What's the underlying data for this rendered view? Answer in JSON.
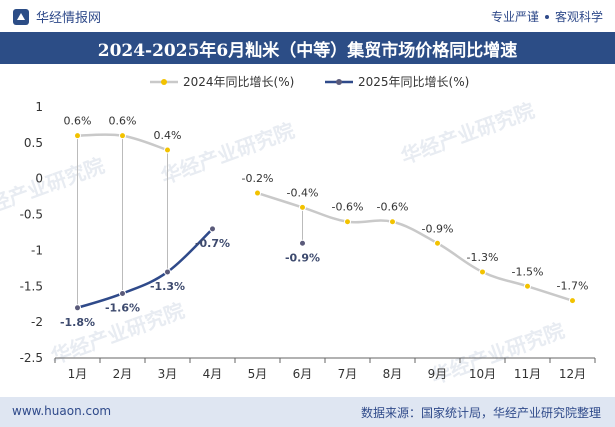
{
  "header": {
    "brand_name": "华经情报网",
    "tagline_left": "专业严谨",
    "tagline_right": "客观科学",
    "title": "2024-2025年6月籼米（中等）集贸市场价格同比增速"
  },
  "footer": {
    "website": "www.huaon.com",
    "source": "数据来源：国家统计局，华经产业研究院整理"
  },
  "watermark": "华经产业研究院",
  "colors": {
    "brand_blue": "#2c4d86",
    "series_2024_line": "#c9c9c9",
    "series_2024_marker": "#f2c200",
    "series_2025_line": "#2f4a8a",
    "series_2025_marker": "#5a5a7a"
  },
  "chart_data": {
    "type": "line",
    "categories": [
      "1月",
      "2月",
      "3月",
      "4月",
      "5月",
      "6月",
      "7月",
      "8月",
      "9月",
      "10月",
      "11月",
      "12月"
    ],
    "ylim": [
      -2.5,
      1
    ],
    "yticks": [
      1,
      0.5,
      0,
      -0.5,
      -1,
      -1.5,
      -2,
      -2.5
    ],
    "legend_position": "top-center",
    "series": [
      {
        "name": "2024年同比增长(%)",
        "values": [
          0.6,
          0.6,
          0.4,
          null,
          -0.2,
          -0.4,
          -0.6,
          -0.6,
          -0.9,
          -1.3,
          -1.5,
          -1.7
        ],
        "labels": [
          "0.6%",
          "0.6%",
          "0.4%",
          "",
          "-0.2%",
          "-0.4%",
          "-0.6%",
          "-0.6%",
          "-0.9%",
          "-1.3%",
          "-1.5%",
          "-1.7%"
        ]
      },
      {
        "name": "2025年同比增长(%)",
        "values": [
          -1.8,
          -1.6,
          -1.3,
          -0.7,
          null,
          -0.9,
          null,
          null,
          null,
          null,
          null,
          null
        ],
        "labels": [
          "-1.8%",
          "-1.6%",
          "-1.3%",
          "-0.7%",
          "",
          "-0.9%",
          "",
          "",
          "",
          "",
          "",
          ""
        ]
      }
    ]
  }
}
